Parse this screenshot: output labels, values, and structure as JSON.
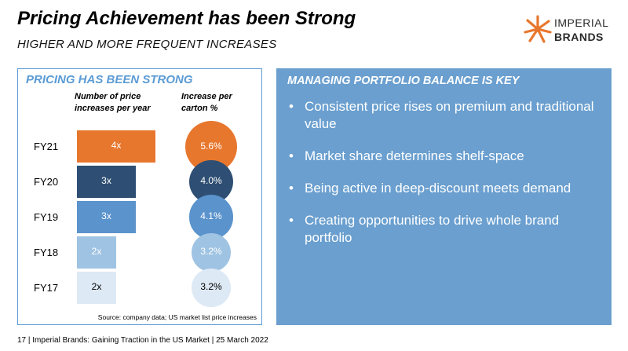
{
  "header": {
    "title": "Pricing Achievement has been Strong",
    "subtitle": "HIGHER AND MORE FREQUENT INCREASES"
  },
  "logo": {
    "line1": "IMPERIAL",
    "line2": "BRANDS",
    "icon": "imperial-brands-star-icon",
    "color": "#e8772e"
  },
  "left_panel": {
    "title": "PRICING HAS BEEN STRONG",
    "col1_line1": "Number of price",
    "col1_line2": "increases per year",
    "col2_line1": "Increase per",
    "col2_line2": "carton %",
    "source": "Source: company data; US market list price increases"
  },
  "chart_data": {
    "type": "bar",
    "categories": [
      "FY21",
      "FY20",
      "FY19",
      "FY18",
      "FY17"
    ],
    "series": [
      {
        "values": [
          4,
          3,
          3,
          2,
          2
        ],
        "labels": [
          "4x",
          "3x",
          "3x",
          "2x",
          "2x"
        ]
      },
      {
        "values": [
          5.6,
          4.0,
          4.1,
          3.2,
          3.2
        ],
        "labels": [
          "5.6%",
          "4.0%",
          "4.1%",
          "3.2%",
          "3.2%"
        ]
      }
    ],
    "colors": [
      "#e8772e",
      "#2e4f73",
      "#5b93cc",
      "#9fc3e2",
      "#dde9f5"
    ],
    "label_colors": [
      "#ffffff",
      "#ffffff",
      "#ffffff",
      "#ffffff",
      "#000000"
    ]
  },
  "right_panel": {
    "title": "MANAGING PORTFOLIO BALANCE IS KEY",
    "bullets": [
      "Consistent price rises on premium and traditional value",
      "Market share determines shelf-space",
      "Being active in deep-discount meets demand",
      "Creating opportunities to drive whole brand portfolio"
    ]
  },
  "footer": {
    "text": "17 |   Imperial Brands: Gaining Traction in the US Market | 25 March 2022"
  }
}
